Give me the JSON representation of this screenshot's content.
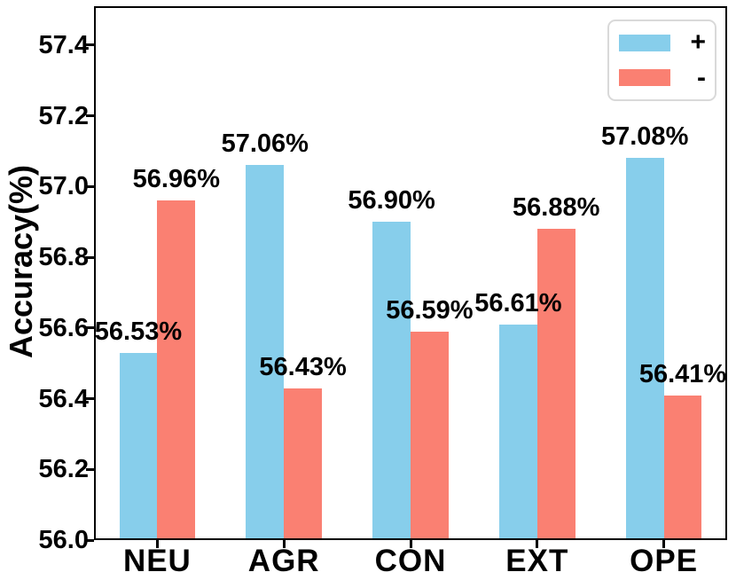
{
  "chart_data": {
    "type": "bar",
    "title": "",
    "xlabel": "",
    "ylabel": "Accuracy(%)",
    "categories": [
      "NEU",
      "AGR",
      "CON",
      "EXT",
      "OPE"
    ],
    "series": [
      {
        "name": "+",
        "color": "#87CEEB",
        "values": [
          56.53,
          57.06,
          56.9,
          56.61,
          57.08
        ],
        "labels": [
          "56.53%",
          "57.06%",
          "56.90%",
          "56.61%",
          "57.08%"
        ]
      },
      {
        "name": "-",
        "color": "#FA8072",
        "values": [
          56.96,
          56.43,
          56.59,
          56.88,
          56.41
        ],
        "labels": [
          "56.96%",
          "56.43%",
          "56.59%",
          "56.88%",
          "56.41%"
        ]
      }
    ],
    "ylim": [
      56.0,
      57.51
    ],
    "yticks": [
      56.0,
      56.2,
      56.4,
      56.6,
      56.8,
      57.0,
      57.2,
      57.4
    ],
    "ytick_labels": [
      "56.0",
      "56.2",
      "56.4",
      "56.6",
      "56.8",
      "57.0",
      "57.2",
      "57.4"
    ],
    "grid": false,
    "legend_position": "upper right",
    "text_color": "#000000",
    "axis_color": "#000000",
    "legend_border_color": "#d9d9d9"
  }
}
